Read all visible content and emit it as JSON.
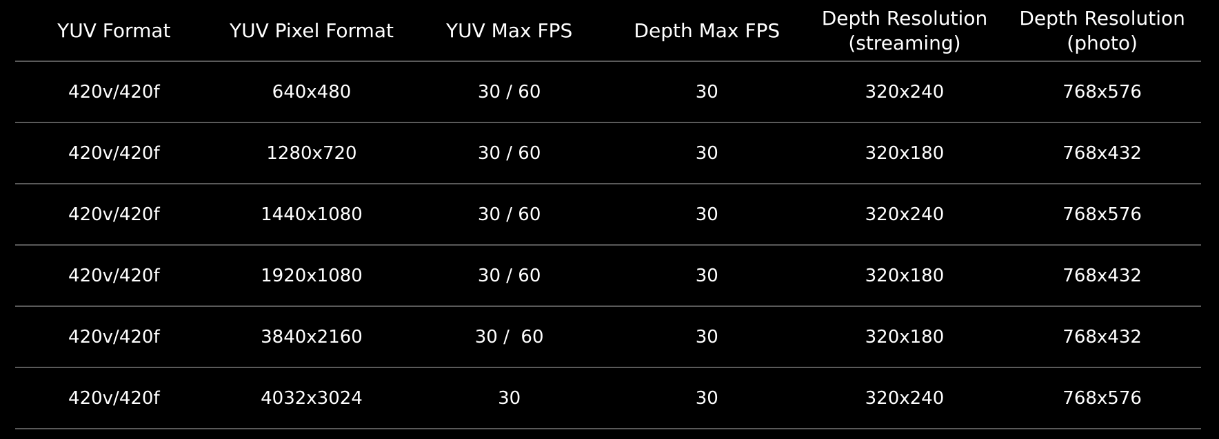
{
  "table": {
    "headers": [
      [
        "YUV Format"
      ],
      [
        "YUV Pixel Format"
      ],
      [
        "YUV Max FPS"
      ],
      [
        "Depth Max FPS"
      ],
      [
        "Depth Resolution",
        "(streaming)"
      ],
      [
        "Depth Resolution",
        "(photo)"
      ]
    ],
    "rows": [
      [
        "420v/420f",
        "640x480",
        "30 / 60",
        "30",
        "320x240",
        "768x576"
      ],
      [
        "420v/420f",
        "1280x720",
        "30 / 60",
        "30",
        "320x180",
        "768x432"
      ],
      [
        "420v/420f",
        "1440x1080",
        "30 / 60",
        "30",
        "320x240",
        "768x576"
      ],
      [
        "420v/420f",
        "1920x1080",
        "30 / 60",
        "30",
        "320x180",
        "768x432"
      ],
      [
        "420v/420f",
        "3840x2160",
        "30 /  60",
        "30",
        "320x180",
        "768x432"
      ],
      [
        "420v/420f",
        "4032x3024",
        "30",
        "30",
        "320x240",
        "768x576"
      ]
    ]
  },
  "colors": {
    "background": "#000000",
    "text": "#ffffff",
    "divider": "#5a5a5a"
  }
}
